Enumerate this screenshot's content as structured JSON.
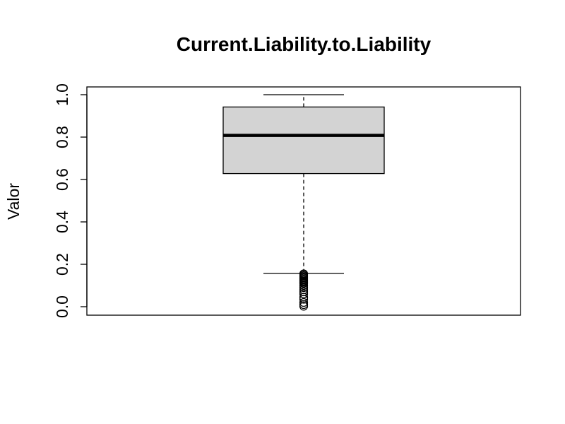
{
  "chart_data": {
    "type": "boxplot",
    "title": "Current.Liability.to.Liability",
    "xlabel": "",
    "ylabel": "Valor",
    "ylim": [
      0.0,
      1.0
    ],
    "yticks": [
      0.0,
      0.2,
      0.4,
      0.6,
      0.8,
      1.0
    ],
    "ytick_labels": [
      "0.0",
      "0.2",
      "0.4",
      "0.6",
      "0.8",
      "1.0"
    ],
    "grid": false,
    "box": {
      "whisker_low": 0.157,
      "q1": 0.628,
      "median": 0.808,
      "q3": 0.942,
      "whisker_high": 1.0
    },
    "outliers": [
      0.155,
      0.15,
      0.145,
      0.14,
      0.135,
      0.13,
      0.125,
      0.12,
      0.115,
      0.11,
      0.1,
      0.09,
      0.08,
      0.07,
      0.06,
      0.045,
      0.035,
      0.02,
      0.01,
      0.002
    ],
    "colors": {
      "box_fill": "#d3d3d3",
      "stroke": "#000000"
    }
  }
}
